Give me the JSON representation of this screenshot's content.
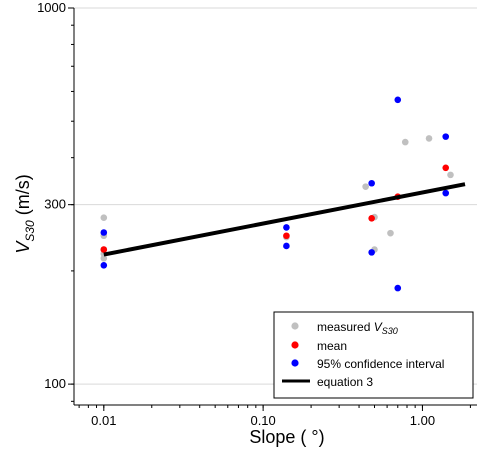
{
  "chart_data": {
    "type": "scatter",
    "x_scale": "log",
    "y_scale": "log",
    "xlim": [
      0.0065,
      2.2
    ],
    "ylim": [
      88,
      1000
    ],
    "xticks": [
      0.01,
      0.1,
      1.0
    ],
    "xtick_labels": [
      "0.01",
      "0.10",
      "1.00"
    ],
    "yticks": [
      100,
      300,
      1000
    ],
    "ytick_labels": [
      "100",
      "300",
      "1000"
    ],
    "xlabel": "Slope ( °)",
    "ylabel": {
      "main": "V",
      "sub": "S30",
      "units": " (m/s)"
    },
    "legend_position": "bottom-right",
    "legend": {
      "measured": {
        "prefix": "measured ",
        "main": "V",
        "sub": "S30"
      },
      "mean": "mean",
      "ci": "95% confidence interval",
      "equation": "equation 3"
    },
    "colors": {
      "measured": "#c0c0c0",
      "mean": "#ff0000",
      "ci": "#0000ff",
      "equation": "#000000"
    },
    "series": [
      {
        "role": "measured",
        "points": [
          {
            "x": 0.01,
            "y": 277
          },
          {
            "x": 0.01,
            "y": 248
          },
          {
            "x": 0.01,
            "y": 228
          },
          {
            "x": 0.01,
            "y": 222
          },
          {
            "x": 0.01,
            "y": 216
          },
          {
            "x": 0.14,
            "y": 246
          },
          {
            "x": 0.44,
            "y": 335
          },
          {
            "x": 0.5,
            "y": 278
          },
          {
            "x": 0.5,
            "y": 228
          },
          {
            "x": 0.63,
            "y": 252
          },
          {
            "x": 0.78,
            "y": 440
          },
          {
            "x": 1.1,
            "y": 450
          },
          {
            "x": 1.5,
            "y": 360
          }
        ]
      },
      {
        "role": "mean",
        "points": [
          {
            "x": 0.01,
            "y": 228
          },
          {
            "x": 0.14,
            "y": 248
          },
          {
            "x": 0.48,
            "y": 276
          },
          {
            "x": 0.7,
            "y": 315
          },
          {
            "x": 1.4,
            "y": 376
          }
        ]
      },
      {
        "role": "ci",
        "points": [
          {
            "x": 0.01,
            "y": 253
          },
          {
            "x": 0.01,
            "y": 207
          },
          {
            "x": 0.14,
            "y": 261
          },
          {
            "x": 0.14,
            "y": 233
          },
          {
            "x": 0.48,
            "y": 342
          },
          {
            "x": 0.48,
            "y": 224
          },
          {
            "x": 0.7,
            "y": 570
          },
          {
            "x": 0.7,
            "y": 180
          },
          {
            "x": 1.4,
            "y": 455
          },
          {
            "x": 1.4,
            "y": 322
          }
        ]
      },
      {
        "role": "equation",
        "line": [
          {
            "x": 0.01,
            "y": 221
          },
          {
            "x": 1.85,
            "y": 340
          }
        ]
      }
    ]
  }
}
